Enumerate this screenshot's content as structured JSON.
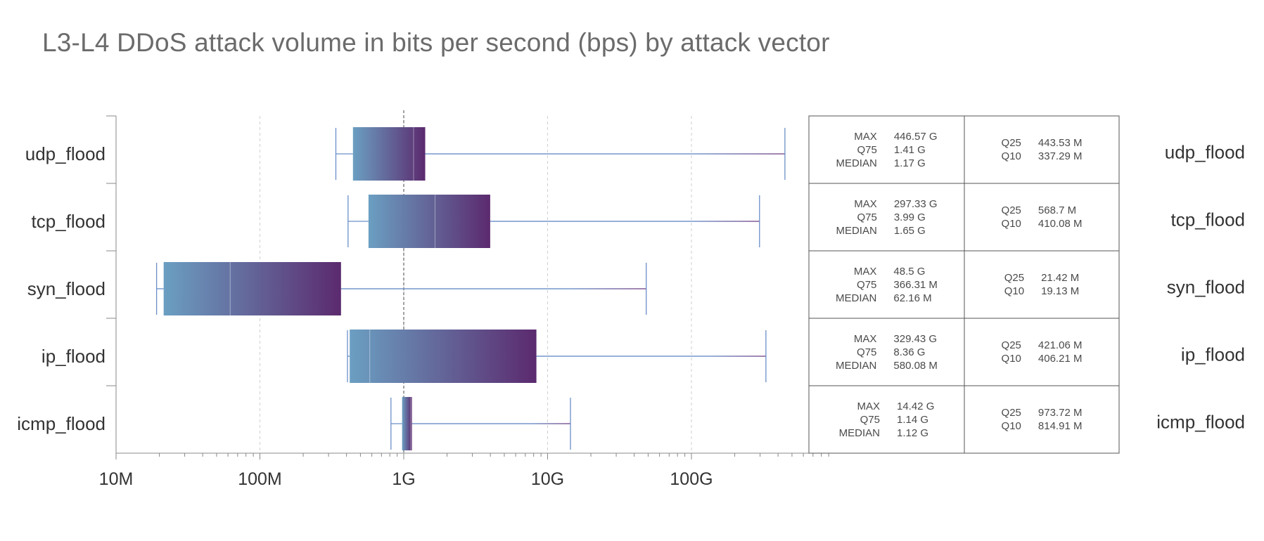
{
  "title": "L3-L4 DDoS attack volume in bits per second (bps) by attack vector",
  "colors": {
    "box_start": "#6b9fc2",
    "box_end": "#5b2a6e",
    "whisker_line": "#6a8fc8",
    "whisker_tail": "#7b4a8a",
    "axis": "#888888",
    "grid": "#cfcfcf",
    "reference_line": "#444444",
    "table_border": "#555555"
  },
  "chart_data": {
    "type": "box",
    "orientation": "horizontal",
    "x_scale": "log",
    "xlim": [
      10000000,
      1000000000000
    ],
    "x_ticks": [
      {
        "value": 10000000,
        "label": "10M"
      },
      {
        "value": 100000000,
        "label": "100M"
      },
      {
        "value": 1000000000,
        "label": "1G"
      },
      {
        "value": 10000000000,
        "label": "10G"
      },
      {
        "value": 100000000000,
        "label": "100G"
      }
    ],
    "reference_line": 1000000000,
    "grid": "vertical dashed",
    "categories": [
      "udp_flood",
      "tcp_flood",
      "syn_flood",
      "ip_flood",
      "icmp_flood"
    ],
    "series": [
      {
        "category": "udp_flood",
        "q10": 337290000,
        "q25": 443530000,
        "median": 1170000000,
        "q75": 1410000000,
        "max": 446570000000
      },
      {
        "category": "tcp_flood",
        "q10": 410080000,
        "q25": 568700000,
        "median": 1650000000,
        "q75": 3990000000,
        "max": 297330000000
      },
      {
        "category": "syn_flood",
        "q10": 19130000,
        "q25": 21420000,
        "median": 62160000,
        "q75": 366310000,
        "max": 48500000000
      },
      {
        "category": "ip_flood",
        "q10": 406210000,
        "q25": 421060000,
        "median": 580080000,
        "q75": 8360000000,
        "max": 329430000000
      },
      {
        "category": "icmp_flood",
        "q10": 814910000,
        "q25": 973720000,
        "median": 1120000000,
        "q75": 1140000000,
        "max": 14420000000
      }
    ]
  },
  "stats_table": [
    {
      "left": [
        {
          "k": "MAX",
          "v": "446.57 G"
        },
        {
          "k": "Q75",
          "v": "1.41 G"
        },
        {
          "k": "MEDIAN",
          "v": "1.17 G"
        }
      ],
      "right": [
        {
          "k": "Q25",
          "v": "443.53 M"
        },
        {
          "k": "Q10",
          "v": "337.29 M"
        }
      ],
      "label": "udp_flood"
    },
    {
      "left": [
        {
          "k": "MAX",
          "v": "297.33 G"
        },
        {
          "k": "Q75",
          "v": "3.99 G"
        },
        {
          "k": "MEDIAN",
          "v": "1.65 G"
        }
      ],
      "right": [
        {
          "k": "Q25",
          "v": "568.7 M"
        },
        {
          "k": "Q10",
          "v": "410.08 M"
        }
      ],
      "label": "tcp_flood"
    },
    {
      "left": [
        {
          "k": "MAX",
          "v": "48.5 G"
        },
        {
          "k": "Q75",
          "v": "366.31 M"
        },
        {
          "k": "MEDIAN",
          "v": "62.16 M"
        }
      ],
      "right": [
        {
          "k": "Q25",
          "v": "21.42 M"
        },
        {
          "k": "Q10",
          "v": "19.13 M"
        }
      ],
      "label": "syn_flood"
    },
    {
      "left": [
        {
          "k": "MAX",
          "v": "329.43 G"
        },
        {
          "k": "Q75",
          "v": "8.36 G"
        },
        {
          "k": "MEDIAN",
          "v": "580.08 M"
        }
      ],
      "right": [
        {
          "k": "Q25",
          "v": "421.06 M"
        },
        {
          "k": "Q10",
          "v": "406.21 M"
        }
      ],
      "label": "ip_flood"
    },
    {
      "left": [
        {
          "k": "MAX",
          "v": "14.42 G"
        },
        {
          "k": "Q75",
          "v": "1.14 G"
        },
        {
          "k": "MEDIAN",
          "v": "1.12 G"
        }
      ],
      "right": [
        {
          "k": "Q25",
          "v": "973.72 M"
        },
        {
          "k": "Q10",
          "v": "814.91 M"
        }
      ],
      "label": "icmp_flood"
    }
  ]
}
